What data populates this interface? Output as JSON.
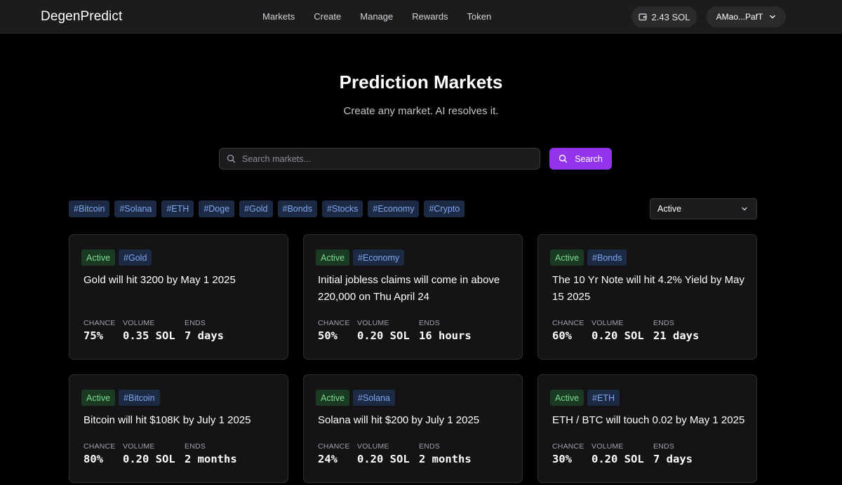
{
  "header": {
    "brand": "DegenPredict",
    "nav": [
      "Markets",
      "Create",
      "Manage",
      "Rewards",
      "Token"
    ],
    "wallet_balance": "2.43 SOL",
    "account": "AMao...PafT"
  },
  "hero": {
    "title": "Prediction Markets",
    "subtitle": "Create any market. AI resolves it."
  },
  "search": {
    "placeholder": "Search markets...",
    "value": "",
    "button_label": "Search"
  },
  "tags": [
    "#Bitcoin",
    "#Solana",
    "#ETH",
    "#Doge",
    "#Gold",
    "#Bonds",
    "#Stocks",
    "#Economy",
    "#Crypto"
  ],
  "filter": {
    "selected": "Active"
  },
  "stat_labels": {
    "chance": "CHANCE",
    "volume": "VOLUME",
    "ends": "ENDS"
  },
  "markets": [
    {
      "status": "Active",
      "tag": "#Gold",
      "title": "Gold will hit 3200 by May 1 2025",
      "chance": "75%",
      "volume": "0.35 SOL",
      "ends": "7 days"
    },
    {
      "status": "Active",
      "tag": "#Economy",
      "title": "Initial jobless claims will come in above 220,000 on Thu April 24",
      "chance": "50%",
      "volume": "0.20 SOL",
      "ends": "16 hours"
    },
    {
      "status": "Active",
      "tag": "#Bonds",
      "title": "The 10 Yr Note will hit 4.2% Yield by May 15 2025",
      "chance": "60%",
      "volume": "0.20 SOL",
      "ends": "21 days"
    },
    {
      "status": "Active",
      "tag": "#Bitcoin",
      "title": "Bitcoin will hit $108K by July 1 2025",
      "chance": "80%",
      "volume": "0.20 SOL",
      "ends": "2 months"
    },
    {
      "status": "Active",
      "tag": "#Solana",
      "title": "Solana will hit $200 by July 1 2025",
      "chance": "24%",
      "volume": "0.20 SOL",
      "ends": "2 months"
    },
    {
      "status": "Active",
      "tag": "#ETH",
      "title": "ETH / BTC will touch 0.02 by May 1 2025",
      "chance": "30%",
      "volume": "0.20 SOL",
      "ends": "7 days"
    }
  ],
  "colors": {
    "accent": "#9333ea",
    "active_badge_bg": "#1a3a22",
    "active_badge_text": "#7ddc8f",
    "tag_bg": "#1d2a44",
    "tag_text": "#7fa6f0"
  },
  "icons": {
    "wallet": "wallet-icon",
    "account_menu": "chevron-down-icon",
    "search": "search-icon",
    "filter_menu": "chevron-down-icon"
  }
}
